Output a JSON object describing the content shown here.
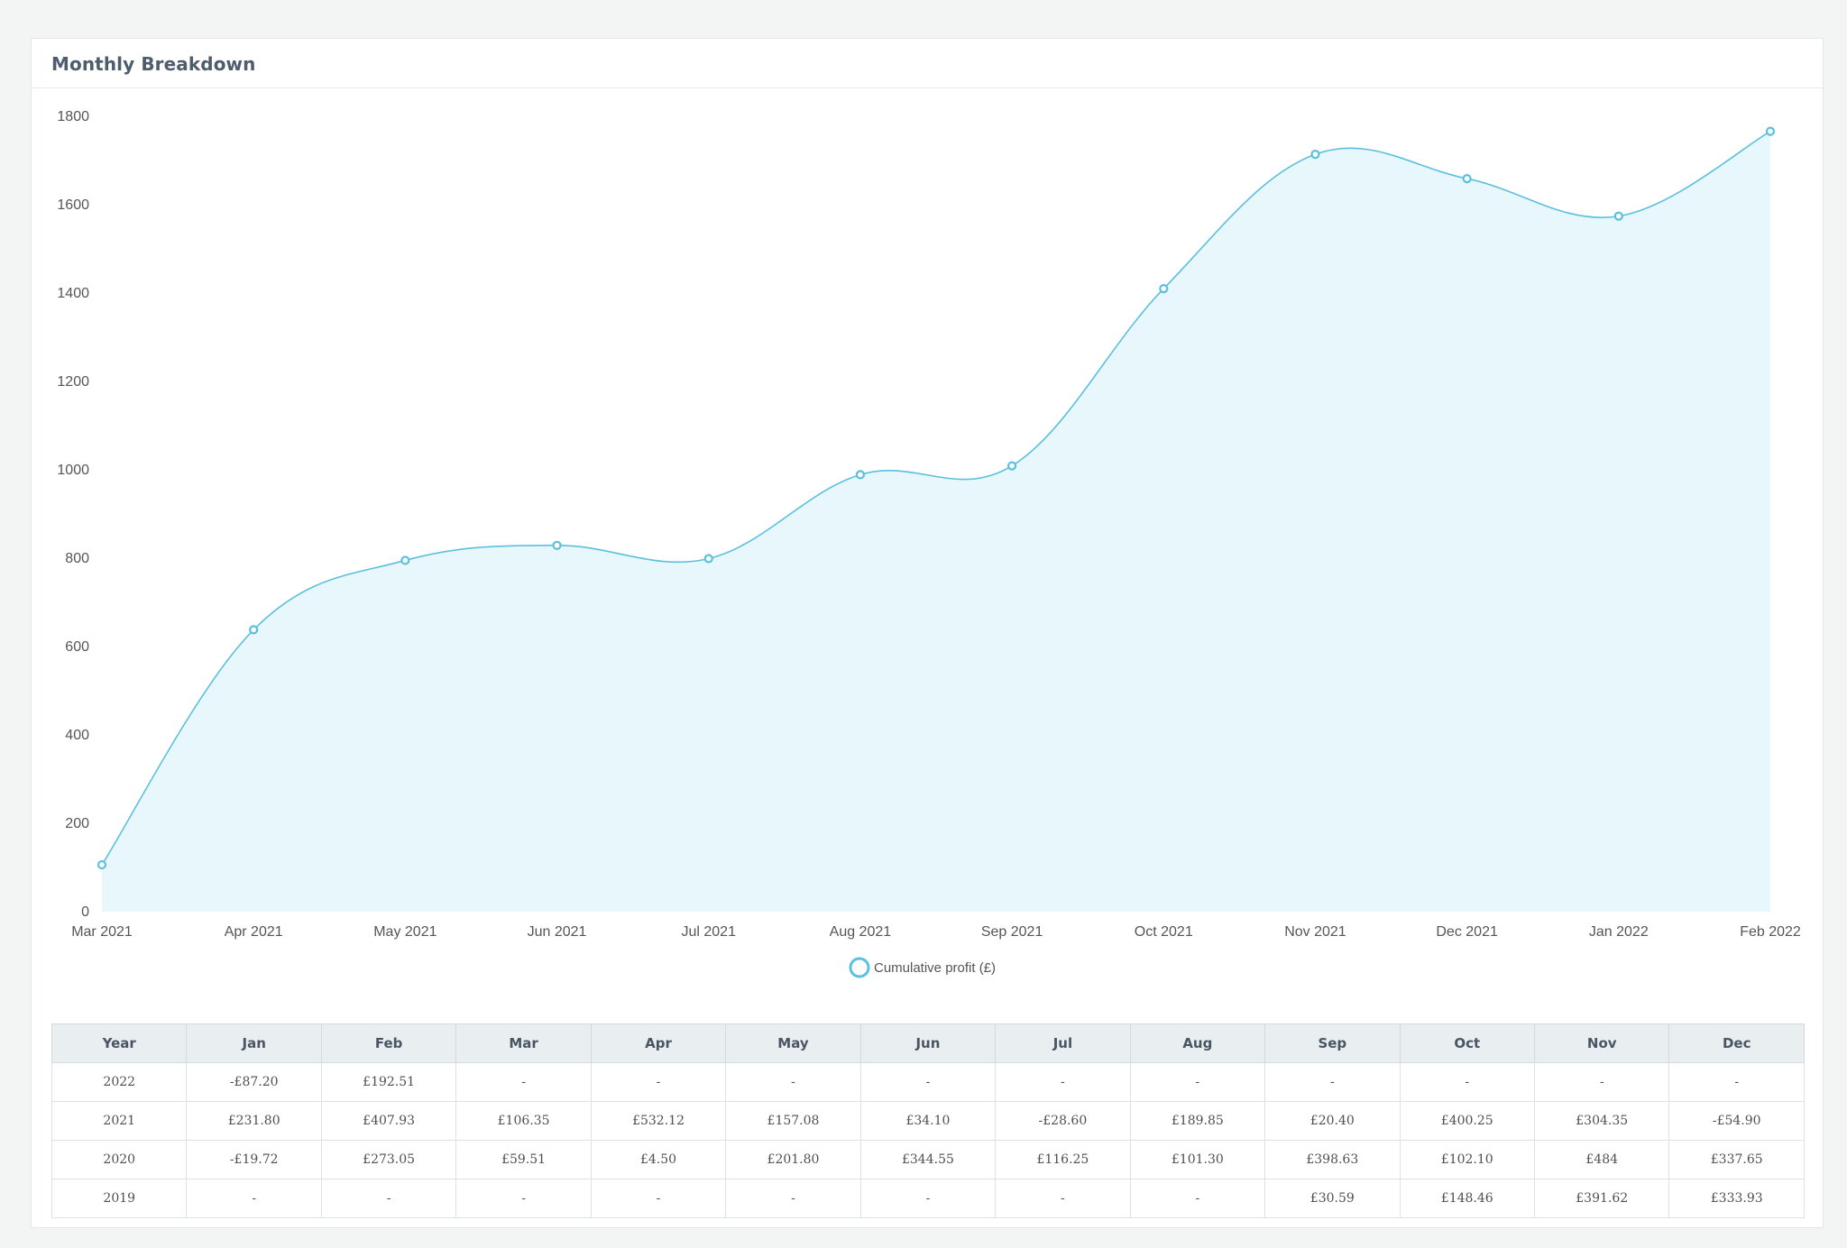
{
  "card": {
    "title": "Monthly Breakdown"
  },
  "chart_data": {
    "type": "area",
    "x": [
      "Mar 2021",
      "Apr 2021",
      "May 2021",
      "Jun 2021",
      "Jul 2021",
      "Aug 2021",
      "Sep 2021",
      "Oct 2021",
      "Nov 2021",
      "Dec 2021",
      "Jan 2022",
      "Feb 2022"
    ],
    "series": [
      {
        "name": "Cumulative profit (£)",
        "values": [
          106,
          638,
          795,
          829,
          799,
          989,
          1009,
          1410,
          1714,
          1659,
          1574,
          1766
        ]
      }
    ],
    "ylim": [
      0,
      1800
    ],
    "yticks": [
      0,
      200,
      400,
      600,
      800,
      1000,
      1200,
      1400,
      1600,
      1800
    ],
    "grid": false,
    "legend": "bottom",
    "colors": {
      "line": "#5bc0de",
      "fill": "#e8f7fc",
      "marker_fill": "#ffffff"
    }
  },
  "table": {
    "headers": [
      "Year",
      "Jan",
      "Feb",
      "Mar",
      "Apr",
      "May",
      "Jun",
      "Jul",
      "Aug",
      "Sep",
      "Oct",
      "Nov",
      "Dec"
    ],
    "rows": [
      [
        "2022",
        "-£87.20",
        "£192.51",
        "-",
        "-",
        "-",
        "-",
        "-",
        "-",
        "-",
        "-",
        "-",
        "-"
      ],
      [
        "2021",
        "£231.80",
        "£407.93",
        "£106.35",
        "£532.12",
        "£157.08",
        "£34.10",
        "-£28.60",
        "£189.85",
        "£20.40",
        "£400.25",
        "£304.35",
        "-£54.90"
      ],
      [
        "2020",
        "-£19.72",
        "£273.05",
        "£59.51",
        "£4.50",
        "£201.80",
        "£344.55",
        "£116.25",
        "£101.30",
        "£398.63",
        "£102.10",
        "£484",
        "£337.65"
      ],
      [
        "2019",
        "-",
        "-",
        "-",
        "-",
        "-",
        "-",
        "-",
        "-",
        "£30.59",
        "£148.46",
        "£391.62",
        "£333.93"
      ]
    ]
  }
}
